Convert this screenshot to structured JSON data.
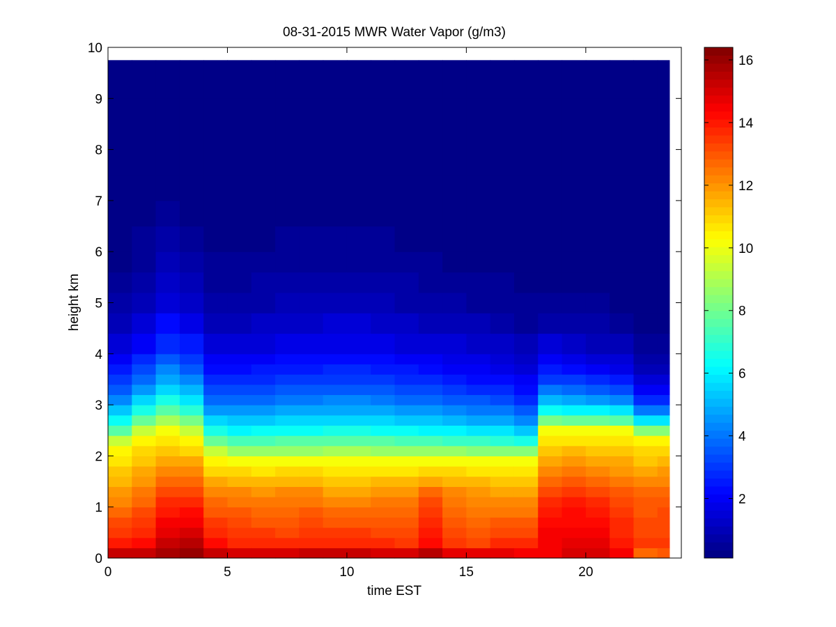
{
  "chart_data": {
    "type": "heatmap",
    "title": "08-31-2015 MWR Water Vapor (g/m3)",
    "xlabel": "time EST",
    "ylabel": "height km",
    "xlim": [
      0,
      24
    ],
    "ylim": [
      0,
      10
    ],
    "x_ticks": [
      0,
      5,
      10,
      15,
      20
    ],
    "y_ticks": [
      0,
      1,
      2,
      3,
      4,
      5,
      6,
      7,
      8,
      9,
      10
    ],
    "colorbar": {
      "colormap": "jet",
      "range": [
        0.1,
        16.4
      ],
      "ticks": [
        2,
        4,
        6,
        8,
        10,
        12,
        14,
        16
      ]
    },
    "data_extent": {
      "x": [
        0,
        23.5
      ],
      "y": [
        0,
        9.75
      ]
    },
    "times": [
      0.5,
      1.5,
      2.5,
      3.5,
      4.5,
      5.5,
      6.5,
      7.5,
      8.5,
      9.5,
      10.5,
      11.5,
      12.5,
      13.5,
      14.5,
      15.5,
      16.5,
      17.5,
      18.5,
      19.5,
      20.5,
      21.5,
      22.5,
      23.5
    ],
    "height_levels_km": [
      0,
      0.2,
      0.4,
      0.6,
      0.8,
      1.0,
      1.2,
      1.4,
      1.6,
      1.8,
      2.0,
      2.2,
      2.4,
      2.6,
      2.8,
      3.0,
      3.2,
      3.4,
      3.6,
      3.8,
      4.0,
      4.4,
      4.8,
      5.2,
      5.6,
      6.0,
      6.5,
      7.0,
      7.5,
      8.0,
      8.5,
      9.0,
      9.75
    ],
    "profile_params": {
      "description": "water vapor density (g/m3) per hour: surface value, near-surface layer value, moist-layer value, moist-layer top height (km), e-folding scale above (km)",
      "surface": [
        15.8,
        15.6,
        16.0,
        16.4,
        15.8,
        15.5,
        15.6,
        15.8,
        15.8,
        15.9,
        15.9,
        15.8,
        15.7,
        16.0,
        15.6,
        15.5,
        15.2,
        14.8,
        14.6,
        15.2,
        15.0,
        14.8,
        12.4,
        12.8
      ],
      "low": [
        14.0,
        14.2,
        15.2,
        15.4,
        14.2,
        13.8,
        13.8,
        13.6,
        13.8,
        13.8,
        13.8,
        13.6,
        13.4,
        14.2,
        13.4,
        13.2,
        13.6,
        13.6,
        14.6,
        14.8,
        14.8,
        14.0,
        13.4,
        13.4
      ],
      "mid": [
        12.0,
        12.6,
        13.4,
        13.6,
        12.4,
        12.4,
        12.2,
        12.4,
        12.4,
        12.0,
        12.0,
        12.2,
        12.2,
        13.0,
        12.4,
        12.2,
        12.0,
        12.0,
        13.6,
        13.8,
        13.6,
        13.2,
        12.8,
        13.0
      ],
      "top": [
        2.2,
        2.4,
        2.5,
        2.4,
        2.0,
        1.9,
        1.9,
        1.9,
        1.9,
        1.9,
        1.9,
        1.9,
        1.9,
        1.9,
        1.9,
        1.9,
        1.9,
        1.9,
        2.5,
        2.5,
        2.5,
        2.5,
        2.4,
        2.4
      ],
      "scale": [
        1.05,
        1.15,
        1.35,
        1.25,
        1.15,
        1.2,
        1.25,
        1.3,
        1.3,
        1.35,
        1.35,
        1.3,
        1.25,
        1.2,
        1.15,
        1.1,
        1.05,
        0.95,
        0.85,
        0.8,
        0.75,
        0.7,
        0.55,
        0.55
      ]
    }
  }
}
